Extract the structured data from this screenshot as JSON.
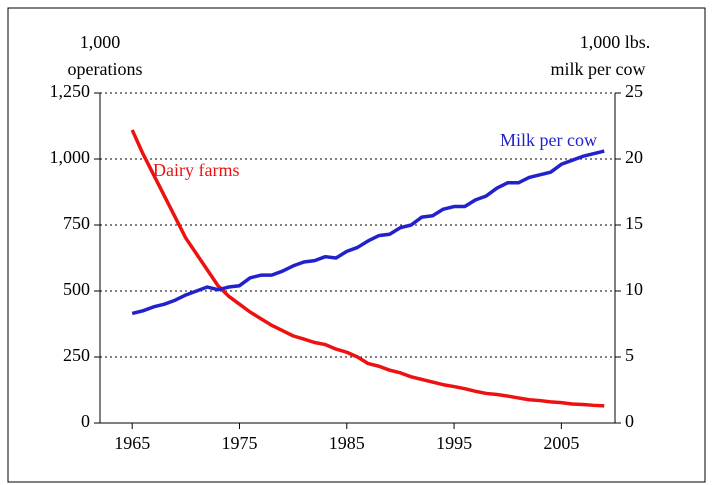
{
  "chart_data": {
    "type": "line",
    "ylabel": [
      "1,000",
      "operations"
    ],
    "y2label": [
      "1,000 lbs.",
      "milk per cow"
    ],
    "x": [
      1965,
      1966,
      1967,
      1968,
      1969,
      1970,
      1971,
      1972,
      1973,
      1974,
      1975,
      1976,
      1977,
      1978,
      1979,
      1980,
      1981,
      1982,
      1983,
      1984,
      1985,
      1986,
      1987,
      1988,
      1989,
      1990,
      1991,
      1992,
      1993,
      1994,
      1995,
      1996,
      1997,
      1998,
      1999,
      2000,
      2001,
      2002,
      2003,
      2004,
      2005,
      2006,
      2007,
      2008,
      2009
    ],
    "series": [
      {
        "name": "Dairy farms",
        "color": "#ee1111",
        "values": [
          1110,
          1020,
          940,
          860,
          780,
          700,
          640,
          580,
          520,
          480,
          450,
          420,
          395,
          370,
          350,
          330,
          318,
          305,
          297,
          280,
          268,
          250,
          225,
          215,
          200,
          190,
          175,
          165,
          155,
          145,
          138,
          130,
          120,
          112,
          108,
          102,
          95,
          88,
          85,
          80,
          77,
          72,
          70,
          67,
          65
        ]
      },
      {
        "name": "Milk per cow",
        "color": "#2222cc",
        "axis": "y2",
        "values": [
          8.3,
          8.5,
          8.8,
          9.0,
          9.3,
          9.7,
          10.0,
          10.3,
          10.1,
          10.3,
          10.4,
          11.0,
          11.2,
          11.2,
          11.5,
          11.9,
          12.2,
          12.3,
          12.6,
          12.5,
          13.0,
          13.3,
          13.8,
          14.2,
          14.3,
          14.8,
          15.0,
          15.6,
          15.7,
          16.2,
          16.4,
          16.4,
          16.9,
          17.2,
          17.8,
          18.2,
          18.2,
          18.6,
          18.8,
          19.0,
          19.6,
          19.9,
          20.2,
          20.4,
          20.6
        ]
      }
    ],
    "xlim": [
      1962,
      2010
    ],
    "xticks": [
      1965,
      1975,
      1985,
      1995,
      2005
    ],
    "ylim": [
      0,
      1250
    ],
    "yticks": [
      0,
      250,
      500,
      750,
      {
        "value": 1000,
        "label": "1,000"
      },
      {
        "value": 1250,
        "label": "1,250"
      }
    ],
    "y2lim": [
      0,
      25
    ],
    "y2ticks": [
      0,
      5,
      10,
      15,
      20,
      25
    ],
    "grid": true
  }
}
